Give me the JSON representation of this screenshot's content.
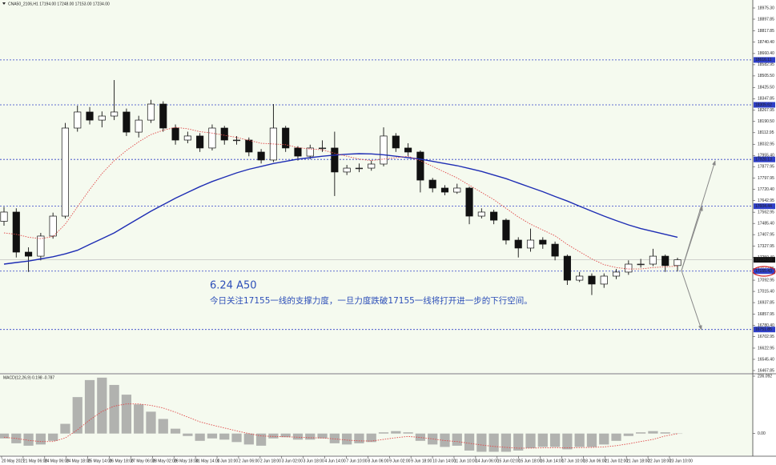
{
  "chart_data": {
    "type": "candlestick",
    "header": "CNA50_2106,H1  17194.00 17248.00 17153.00 17234.00",
    "annotation_title": "6.24 A50",
    "annotation_text": "今日关注17155一线的支撑力度，一旦力度跌破17155一线将打开进一步的下行空间。",
    "macd_label": "MACD(12,26,9) 0.198 -0.787",
    "ylim": [
      16467.85,
      18975.3
    ],
    "yticks": [
      {
        "value": 18975.3,
        "label": "18975.30"
      },
      18897.85,
      18817.85,
      {
        "value": 18740.4,
        "label": "18740.40"
      },
      {
        "value": 18660.4,
        "label": "18660.40"
      },
      {
        "value": 18582.95,
        "label": "18582.95"
      },
      {
        "value": 18505.5,
        "label": "18505.50"
      },
      {
        "value": 18425.5,
        "label": "18425.50"
      },
      18347.85,
      18267.95,
      {
        "value": 18190.5,
        "label": "18190.50"
      },
      18112.95,
      18032.95,
      {
        "value": 17955.4,
        "label": "17955.40"
      },
      17877.95,
      17797.95,
      {
        "value": 17720.4,
        "label": "17720.40"
      },
      17642.95,
      17562.95,
      {
        "value": 17485.4,
        "label": "17485.40"
      },
      17407.95,
      17327.95,
      {
        "value": 17250.4,
        "label": "17250.40"
      },
      17172.95,
      17092.95,
      {
        "value": 17015.4,
        "label": "17015.40"
      },
      16937.85,
      16857.95,
      {
        "value": 16780.4,
        "label": "16780.40"
      },
      16702.95,
      16622.95,
      {
        "value": 16545.4,
        "label": "16545.40"
      },
      16467.85
    ],
    "levels": {
      "color": "#2f3fc8",
      "values": [
        18616.11,
        18305.62,
        17928.13,
        17604.44,
        17155.43,
        16751.85
      ]
    },
    "current_price": {
      "value": 17234,
      "label": "17234.00"
    },
    "xlabels": [
      "20 May 2021",
      "21 May 06:00",
      "24 May 06:00",
      "24 May 18:00",
      "25 May 14:00",
      "26 May 18:00",
      "27 May 06:00",
      "28 May 02:00",
      "28 May 18:00",
      "31 May 14:00",
      "1 Jun 10:00",
      "2 Jun 06:00",
      "2 Jun 18:00",
      "3 Jun 02:00",
      "3 Jun 18:00",
      "4 Jun 14:00",
      "7 Jun 10:00",
      "8 Jun 06:00",
      "9 Jun 02:00",
      "9 Jun 18:00",
      "10 Jun 14:00",
      "11 Jun 10:00",
      "14 Jun 06:00",
      "15 Jun 02:00",
      "15 Jun 18:00",
      "16 Jun 14:00",
      "17 Jun 10:00",
      "18 Jun 06:00",
      "21 Jun 02:00",
      "21 Jun 18:00",
      "22 Jun 18:00",
      "23 Jun 10:00"
    ],
    "candles": {
      "open": [
        17500,
        17564,
        17287,
        17259,
        17398,
        17536,
        18145,
        18256,
        18200,
        18228,
        18256,
        18117,
        18200,
        18311,
        18145,
        18062,
        18090,
        18007,
        18145,
        18062,
        18062,
        17979,
        17924,
        18145,
        18007,
        17951,
        18007,
        18007,
        17841,
        17868,
        17868,
        17896,
        18090,
        18007,
        17979,
        17785,
        17730,
        17702,
        17730,
        17536,
        17564,
        17508,
        17370,
        17315,
        17370,
        17342,
        17259,
        17093,
        17121,
        17066,
        17121,
        17149,
        17204,
        17204,
        17259,
        17194
      ],
      "high": [
        17600,
        17590,
        17320,
        17420,
        17560,
        18180,
        18300,
        18290,
        18260,
        18477,
        18280,
        18230,
        18340,
        18330,
        18170,
        18120,
        18110,
        18170,
        18160,
        18090,
        18080,
        18000,
        18311,
        18160,
        18020,
        18030,
        18060,
        18120,
        17890,
        17900,
        17920,
        18150,
        18110,
        18040,
        17990,
        17800,
        17750,
        17760,
        17740,
        17590,
        17580,
        17520,
        17390,
        17450,
        17390,
        17360,
        17270,
        17150,
        17140,
        17140,
        17170,
        17230,
        17240,
        17310,
        17270,
        17248
      ],
      "low": [
        17470,
        17250,
        17150,
        17230,
        17380,
        17520,
        18120,
        18170,
        18150,
        18200,
        18090,
        18080,
        18180,
        18120,
        18030,
        18040,
        17980,
        17990,
        18030,
        18030,
        17950,
        17900,
        17910,
        17980,
        17920,
        17930,
        17980,
        17675,
        17820,
        17840,
        17850,
        17880,
        17980,
        17950,
        17700,
        17700,
        17680,
        17690,
        17480,
        17520,
        17480,
        17340,
        17250,
        17290,
        17310,
        17230,
        17060,
        17080,
        16990,
        17040,
        17100,
        17130,
        17180,
        17190,
        17150,
        17153
      ],
      "close": [
        17564,
        17287,
        17259,
        17398,
        17536,
        18145,
        18256,
        18200,
        18228,
        18256,
        18117,
        18200,
        18311,
        18145,
        18062,
        18090,
        18007,
        18145,
        18062,
        18062,
        17979,
        17924,
        18145,
        18007,
        17951,
        18007,
        18007,
        17841,
        17868,
        17868,
        17896,
        18090,
        18007,
        17979,
        17785,
        17730,
        17702,
        17730,
        17536,
        17564,
        17508,
        17370,
        17315,
        17370,
        17342,
        17259,
        17093,
        17121,
        17066,
        17121,
        17149,
        17204,
        17204,
        17259,
        17194,
        17234
      ]
    },
    "lines": [
      {
        "color": "#1e2db4",
        "style": "solid",
        "values": [
          17204,
          17215,
          17225,
          17240,
          17255,
          17275,
          17300,
          17340,
          17380,
          17420,
          17470,
          17520,
          17570,
          17615,
          17660,
          17700,
          17740,
          17775,
          17805,
          17835,
          17860,
          17880,
          17900,
          17915,
          17930,
          17940,
          17950,
          17958,
          17964,
          17968,
          17966,
          17960,
          17950,
          17940,
          17930,
          17915,
          17900,
          17885,
          17865,
          17845,
          17820,
          17795,
          17765,
          17735,
          17705,
          17672,
          17640,
          17605,
          17570,
          17536,
          17505,
          17475,
          17450,
          17430,
          17410,
          17390
        ]
      },
      {
        "color": "#e04848",
        "style": "dotted",
        "values": [
          17420,
          17410,
          17390,
          17380,
          17395,
          17480,
          17600,
          17720,
          17830,
          17920,
          17990,
          18050,
          18100,
          18130,
          18150,
          18140,
          18120,
          18110,
          18095,
          18080,
          18060,
          18040,
          18035,
          18030,
          18010,
          18000,
          17995,
          17970,
          17950,
          17930,
          17920,
          17930,
          17940,
          17950,
          17920,
          17880,
          17840,
          17800,
          17750,
          17700,
          17650,
          17590,
          17530,
          17480,
          17440,
          17400,
          17340,
          17290,
          17240,
          17200,
          17180,
          17170,
          17170,
          17180,
          17185,
          17190
        ]
      }
    ],
    "macd": {
      "ylim": [
        -80,
        236.092
      ],
      "yticks": [
        236.092,
        {
          "value": 0,
          "label": "0.00"
        }
      ],
      "bar_color": "#9a9a9a",
      "signal_color": "#e04848",
      "values": [
        -20,
        -40,
        -50,
        -45,
        -30,
        40,
        150,
        220,
        230,
        200,
        160,
        120,
        90,
        60,
        20,
        -10,
        -30,
        -20,
        -25,
        -35,
        -45,
        -50,
        -20,
        -15,
        -25,
        -25,
        -20,
        -40,
        -45,
        -40,
        -35,
        5,
        10,
        5,
        -30,
        -45,
        -55,
        -50,
        -70,
        -75,
        -75,
        -75,
        -70,
        -60,
        -55,
        -55,
        -65,
        -55,
        -55,
        -45,
        -30,
        -10,
        5,
        10,
        5,
        0.198
      ],
      "signal": [
        -15,
        -20,
        -28,
        -33,
        -33,
        -18,
        15,
        56,
        91,
        113,
        122,
        122,
        116,
        105,
        88,
        68,
        48,
        35,
        23,
        11,
        0,
        -10,
        -12,
        -13,
        -15,
        -17,
        -18,
        -22,
        -27,
        -30,
        -31,
        -24,
        -17,
        -12,
        -16,
        -22,
        -29,
        -33,
        -40,
        -47,
        -53,
        -57,
        -60,
        -60,
        -59,
        -58,
        -59,
        -58,
        -57,
        -55,
        -50,
        -42,
        -33,
        -24,
        -10,
        -0.787
      ]
    }
  }
}
